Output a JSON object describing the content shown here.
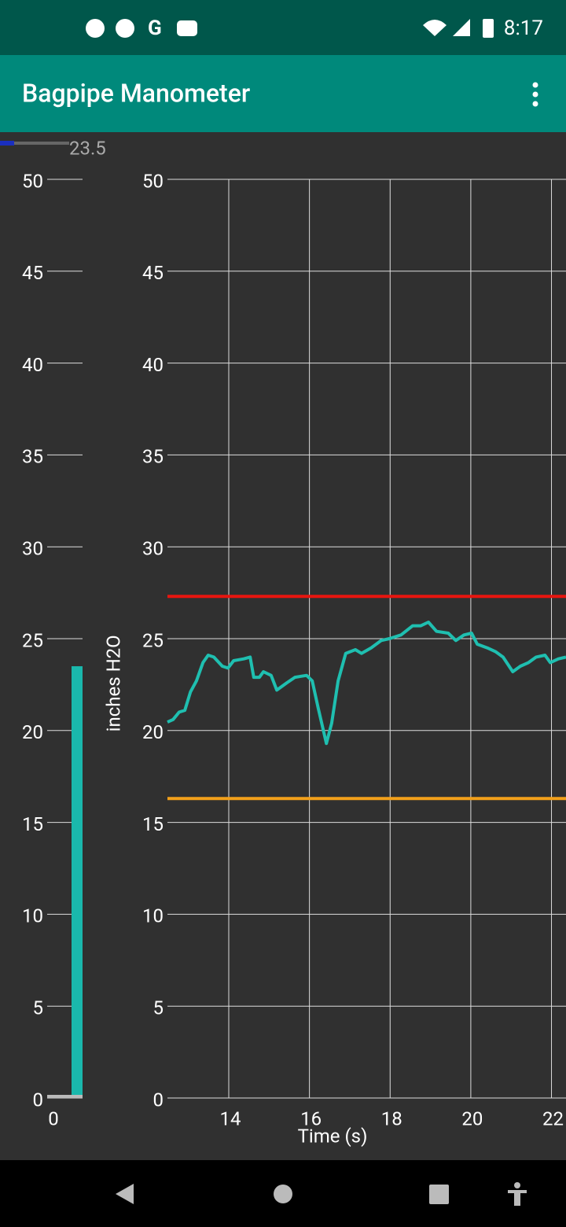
{
  "status_bar": {
    "time": "8:17"
  },
  "app_bar": {
    "title": "Bagpipe Manometer"
  },
  "readout": {
    "value": "23.5"
  },
  "chart_data": [
    {
      "type": "bar",
      "categories": [
        "0"
      ],
      "values": [
        23.5
      ],
      "color": "#1ab8ac",
      "ylim": [
        0,
        50
      ],
      "yticks": [
        0,
        5,
        10,
        15,
        20,
        25,
        30,
        35,
        40,
        45,
        50
      ],
      "grid": true
    },
    {
      "type": "line",
      "xlabel": "Time (s)",
      "ylabel": "inches H2O",
      "color": "#1fbfb0",
      "x": [
        12.48,
        12.62,
        12.77,
        12.91,
        13.05,
        13.2,
        13.36,
        13.49,
        13.63,
        13.84,
        13.98,
        14.12,
        14.37,
        14.53,
        14.62,
        14.76,
        14.86,
        15.05,
        15.19,
        15.44,
        15.64,
        15.93,
        16.07,
        16.22,
        16.42,
        16.55,
        16.71,
        16.9,
        17.14,
        17.29,
        17.53,
        17.78,
        17.98,
        18.27,
        18.56,
        18.76,
        18.95,
        19.15,
        19.44,
        19.63,
        19.83,
        20.02,
        20.16,
        20.41,
        20.61,
        20.8,
        21.04,
        21.23,
        21.43,
        21.62,
        21.84,
        21.97,
        22.17,
        22.36
      ],
      "values": [
        20.46,
        20.6,
        21.0,
        21.1,
        22.1,
        22.7,
        23.7,
        24.1,
        24.0,
        23.5,
        23.4,
        23.8,
        23.9,
        24.0,
        22.9,
        22.9,
        23.2,
        23.0,
        22.2,
        22.6,
        22.9,
        23.0,
        22.7,
        21.2,
        19.3,
        20.4,
        22.7,
        24.2,
        24.4,
        24.2,
        24.5,
        24.9,
        25.0,
        25.2,
        25.7,
        25.7,
        25.9,
        25.4,
        25.3,
        24.9,
        25.2,
        25.3,
        24.7,
        24.5,
        24.3,
        24.0,
        23.2,
        23.5,
        23.7,
        24.0,
        24.1,
        23.7,
        23.9,
        24.0
      ],
      "xlim": [
        12.48,
        22.36
      ],
      "ylim": [
        0,
        50
      ],
      "xticks": [
        14,
        16,
        18,
        20,
        22
      ],
      "yticks": [
        0,
        5,
        10,
        15,
        20,
        25,
        30,
        35,
        40,
        45,
        50
      ],
      "grid": true,
      "reference_lines": [
        {
          "value": 27.3,
          "color": "#e8150f"
        },
        {
          "value": 16.3,
          "color": "#f2a01a"
        }
      ]
    }
  ]
}
